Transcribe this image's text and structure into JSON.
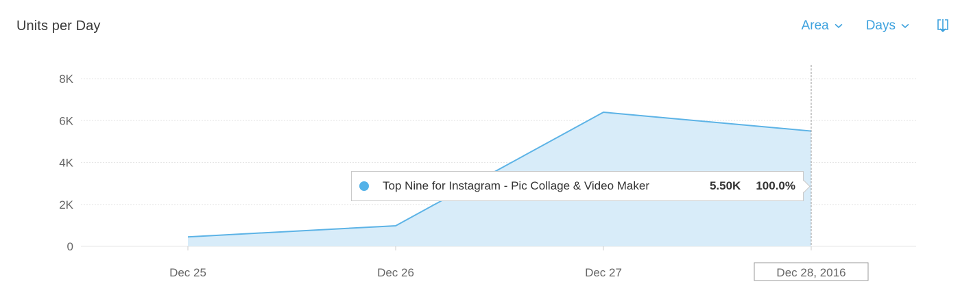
{
  "header": {
    "title": "Units per Day",
    "chart_type_label": "Area",
    "period_label": "Days",
    "download_icon": "download-icon",
    "chevron_icon": "chevron-down-icon"
  },
  "colors": {
    "accent": "#3ea2de",
    "series_line": "#5cb3e6",
    "series_fill": "#d8ecf9",
    "grid": "#e6e6e6",
    "axis_text": "#666666"
  },
  "tooltip": {
    "series_name": "Top Nine for Instagram - Pic Collage & Video Maker",
    "value": "5.50K",
    "percent": "100.0%"
  },
  "chart_data": {
    "type": "area",
    "title": "Units per Day",
    "x": [
      "Dec 25",
      "Dec 26",
      "Dec 27",
      "Dec 28, 2016"
    ],
    "series": [
      {
        "name": "Top Nine for Instagram - Pic Collage & Video Maker",
        "values": [
          450,
          980,
          6400,
          5500
        ]
      }
    ],
    "ylim": [
      0,
      8000
    ],
    "yticks": [
      0,
      2000,
      4000,
      6000,
      8000
    ],
    "ytick_labels": [
      "0",
      "2K",
      "4K",
      "6K",
      "8K"
    ],
    "highlighted_x": "Dec 28, 2016",
    "grid": true
  }
}
